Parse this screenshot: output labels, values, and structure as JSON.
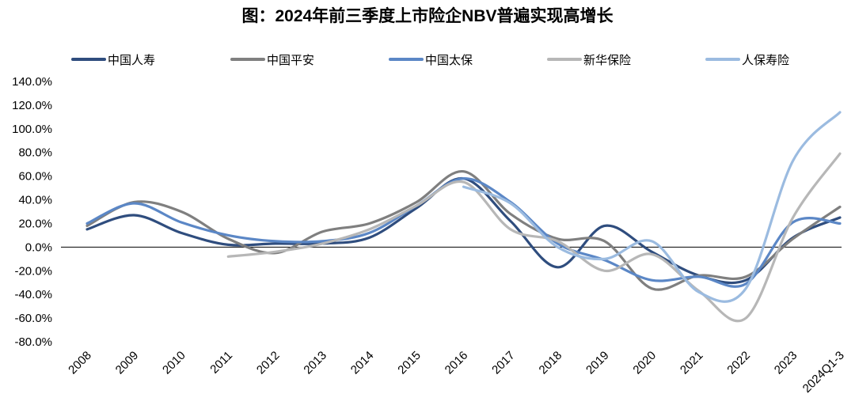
{
  "chart_data": {
    "type": "line",
    "title": "图：2024年前三季度上市险企NBV普遍实现高增长",
    "xlabel": "",
    "ylabel": "",
    "categories": [
      "2008",
      "2009",
      "2010",
      "2011",
      "2012",
      "2013",
      "2014",
      "2015",
      "2016",
      "2017",
      "2018",
      "2019",
      "2020",
      "2021",
      "2022",
      "2023",
      "2024Q1-3"
    ],
    "y_ticks": [
      "140.0%",
      "120.0%",
      "100.0%",
      "80.0%",
      "60.0%",
      "40.0%",
      "20.0%",
      "0.0%",
      "-20.0%",
      "-40.0%",
      "-60.0%",
      "-80.0%"
    ],
    "ylim": [
      -80,
      140
    ],
    "y_unit": "%",
    "grid": false,
    "zero_line": true,
    "legend_position": "top",
    "series": [
      {
        "name": "中国人寿",
        "color": "#2f4d7e",
        "values": [
          15,
          27,
          12,
          2,
          3,
          3,
          8,
          33,
          58,
          22,
          -17,
          18,
          -4,
          -24,
          -28,
          8,
          25
        ]
      },
      {
        "name": "中国平安",
        "color": "#7f7f7f",
        "values": [
          18,
          38,
          30,
          7,
          -5,
          13,
          20,
          38,
          64,
          28,
          7,
          5,
          -35,
          -24,
          -25,
          7,
          34
        ]
      },
      {
        "name": "中国太保",
        "color": "#5b87c6",
        "values": [
          20,
          37,
          21,
          10,
          5,
          5,
          12,
          35,
          58,
          38,
          3,
          -11,
          -28,
          -25,
          -31,
          21,
          20
        ]
      },
      {
        "name": "新华保险",
        "color": "#b7b7b7",
        "values": [
          null,
          null,
          null,
          -8,
          -4,
          3,
          15,
          35,
          55,
          15,
          5,
          -20,
          -6,
          -37,
          -60,
          25,
          79
        ]
      },
      {
        "name": "人保寿险",
        "color": "#9bbbe0",
        "values": [
          null,
          null,
          null,
          null,
          null,
          null,
          null,
          null,
          51,
          37,
          0,
          -10,
          5,
          -38,
          -35,
          73,
          114
        ]
      }
    ]
  }
}
